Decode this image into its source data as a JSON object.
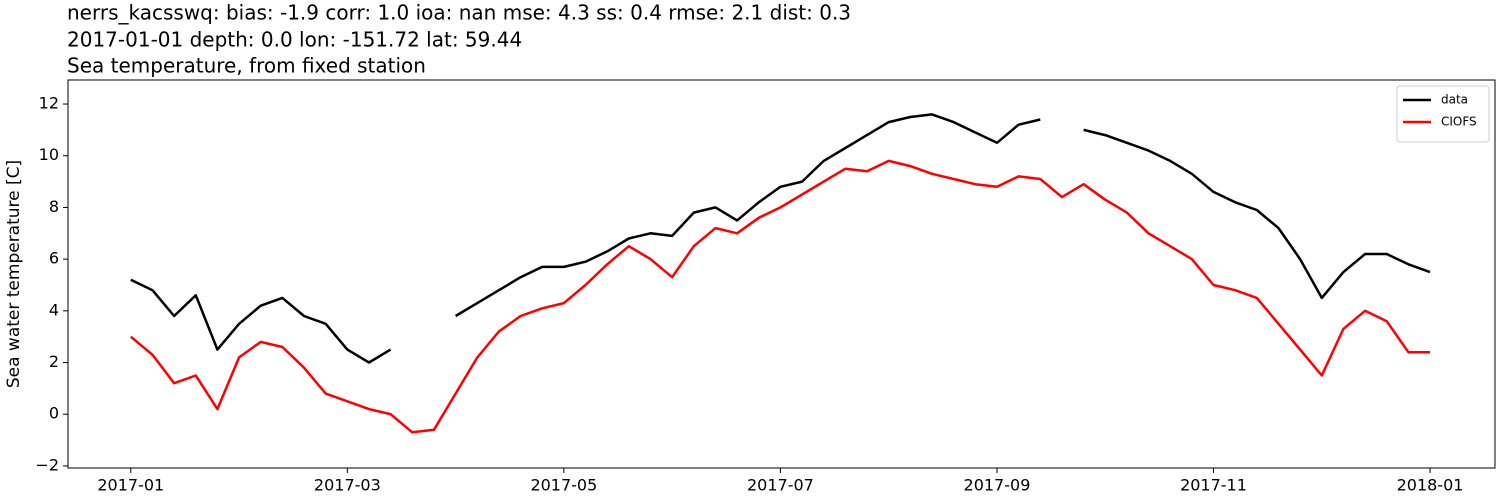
{
  "chart_data": {
    "type": "line",
    "title_lines": [
      "nerrs_kacsswq: bias: -1.9  corr: 1.0  ioa: nan  mse: 4.3  ss: 0.4  rmse: 2.1  dist: 0.3",
      "2017-01-01 depth: 0.0 lon: -151.72 lat: 59.44",
      "Sea temperature, from fixed station"
    ],
    "ylabel": "Sea water temperature [C]",
    "x": [
      0,
      0.2,
      0.4,
      0.6,
      0.8,
      1.0,
      1.2,
      1.4,
      1.6,
      1.8,
      2.0,
      2.2,
      2.4,
      2.6,
      2.8,
      3.0,
      3.2,
      3.4,
      3.6,
      3.8,
      4.0,
      4.2,
      4.4,
      4.6,
      4.8,
      5.0,
      5.2,
      5.4,
      5.6,
      5.8,
      6.0,
      6.2,
      6.4,
      6.6,
      6.8,
      7.0,
      7.2,
      7.4,
      7.6,
      7.8,
      8.0,
      8.2,
      8.4,
      8.6,
      8.8,
      9.0,
      9.2,
      9.4,
      9.6,
      9.8,
      10.0,
      10.2,
      10.4,
      10.6,
      10.8,
      11.0,
      11.2,
      11.4,
      11.6,
      11.8,
      12.0
    ],
    "series": [
      {
        "name": "data",
        "color": "#000000",
        "values": [
          5.2,
          4.8,
          3.8,
          4.6,
          2.5,
          3.5,
          4.2,
          4.5,
          3.8,
          3.5,
          2.5,
          2.0,
          2.5,
          null,
          null,
          3.8,
          4.3,
          4.8,
          5.3,
          5.7,
          5.7,
          5.9,
          6.3,
          6.8,
          7.0,
          6.9,
          7.8,
          8.0,
          7.5,
          8.2,
          8.8,
          9.0,
          9.8,
          10.3,
          10.8,
          11.3,
          11.5,
          11.6,
          11.3,
          10.9,
          10.5,
          11.2,
          11.4,
          null,
          11.0,
          10.8,
          10.5,
          10.2,
          9.8,
          9.3,
          8.6,
          8.2,
          7.9,
          7.2,
          6.0,
          4.5,
          5.5,
          6.2,
          6.2,
          5.8,
          5.5
        ]
      },
      {
        "name": "CIOFS",
        "color": "#ff0000",
        "values": [
          3.0,
          2.3,
          1.2,
          1.5,
          0.2,
          2.2,
          2.8,
          2.6,
          1.8,
          0.8,
          0.5,
          0.2,
          0.0,
          -0.7,
          -0.6,
          0.8,
          2.2,
          3.2,
          3.8,
          4.1,
          4.3,
          5.0,
          5.8,
          6.5,
          6.0,
          5.3,
          6.5,
          7.2,
          7.0,
          7.6,
          8.0,
          8.5,
          9.0,
          9.5,
          9.4,
          9.8,
          9.6,
          9.3,
          9.1,
          8.9,
          8.8,
          9.2,
          9.1,
          8.4,
          8.9,
          8.3,
          7.8,
          7.0,
          6.5,
          6.0,
          5.0,
          4.8,
          4.5,
          3.5,
          2.5,
          1.5,
          3.3,
          4.0,
          3.6,
          2.4,
          2.4
        ]
      }
    ],
    "xlim": [
      -0.58,
      12.6
    ],
    "xticks": [
      {
        "value": 0,
        "label": "2017-01"
      },
      {
        "value": 2,
        "label": "2017-03"
      },
      {
        "value": 4,
        "label": "2017-05"
      },
      {
        "value": 6,
        "label": "2017-07"
      },
      {
        "value": 8,
        "label": "2017-09"
      },
      {
        "value": 10,
        "label": "2017-11"
      },
      {
        "value": 12,
        "label": "2018-01"
      }
    ],
    "ylim": [
      -2.08,
      12.93
    ],
    "yticks": [
      {
        "value": -2,
        "label": "−2"
      },
      0,
      2,
      4,
      6,
      8,
      10,
      12
    ],
    "legend": "upper right"
  }
}
